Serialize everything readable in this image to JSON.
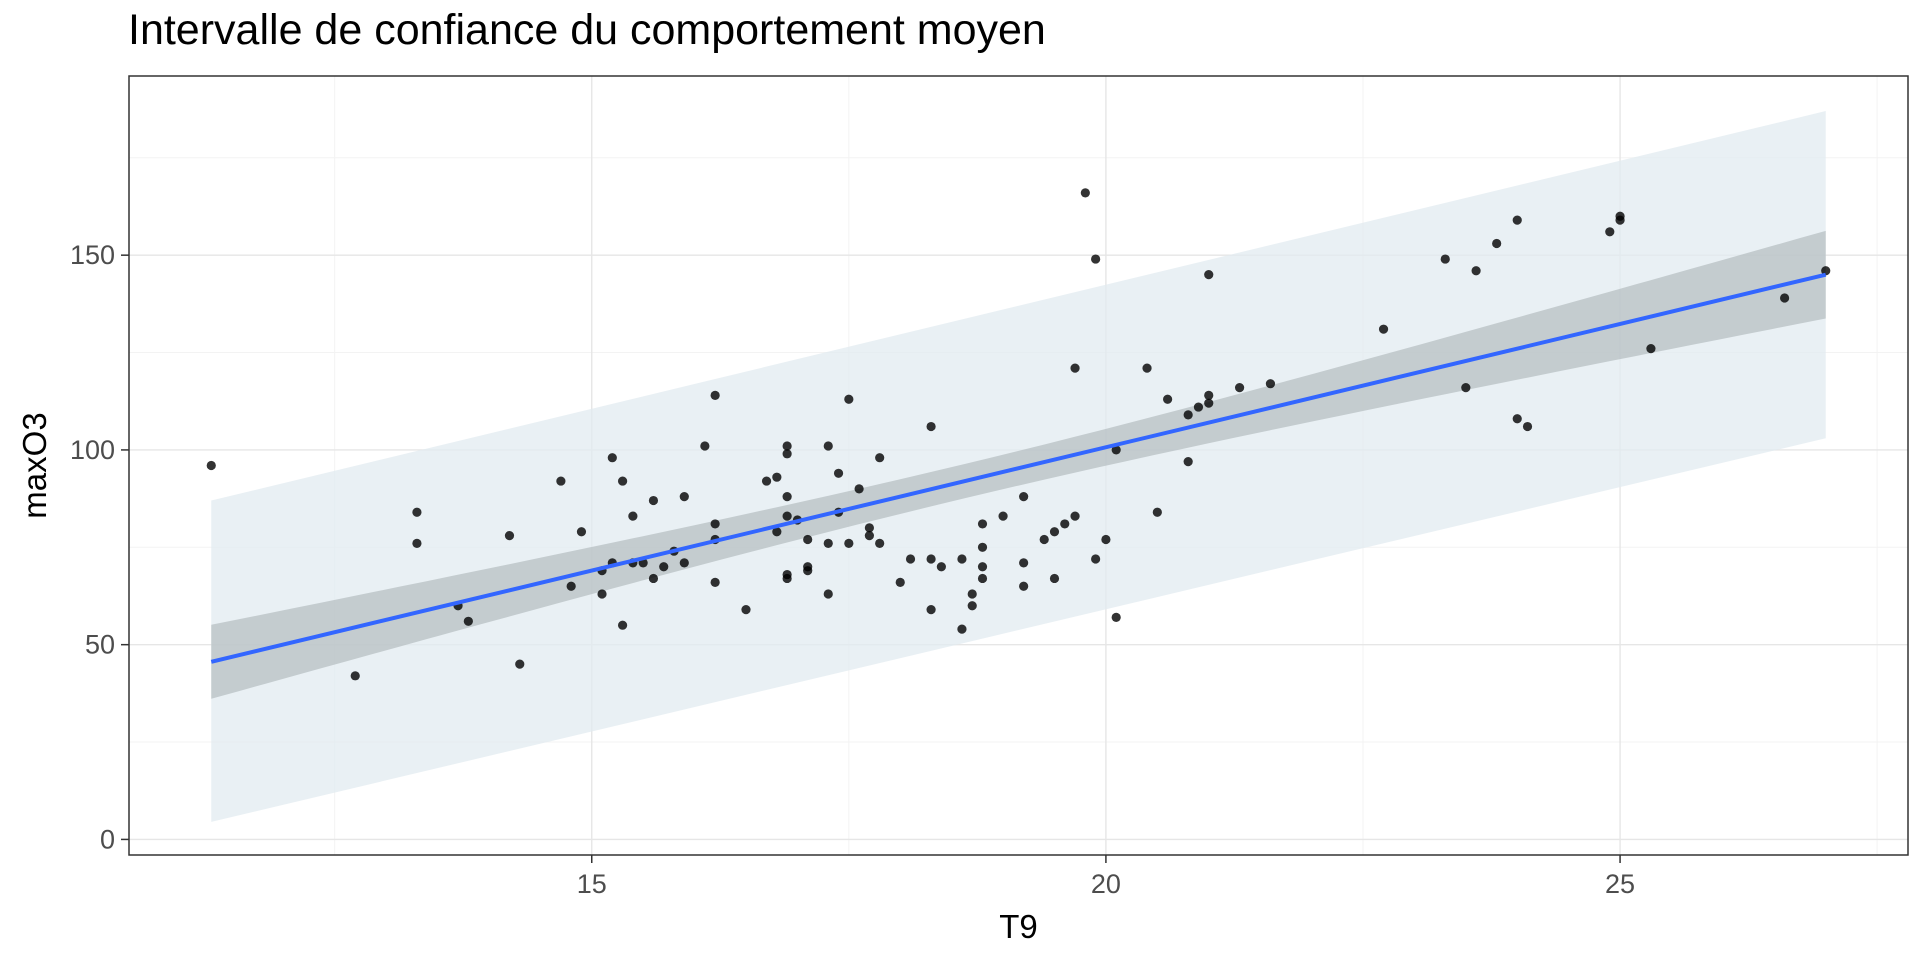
{
  "chart_data": {
    "type": "scatter",
    "title": "Intervalle de confiance du comportement moyen",
    "xlabel": "T9",
    "ylabel": "maxO3",
    "xlim": [
      10.5,
      27.8
    ],
    "ylim": [
      -4,
      196
    ],
    "x_ticks": [
      15,
      20,
      25
    ],
    "x_tick_labels": [
      "15",
      "20",
      "25"
    ],
    "y_ticks": [
      0,
      50,
      100,
      150
    ],
    "y_tick_labels": [
      "0",
      "50",
      "100",
      "150"
    ],
    "grid": true,
    "legend": "none",
    "regression": {
      "x_start": 11.3,
      "x_end": 27.0,
      "fit_start": 45.6,
      "fit_end": 145.0,
      "conf_lower_start": 36.0,
      "conf_upper_start": 55.0,
      "conf_lower_end": 133.5,
      "conf_upper_end": 156.0,
      "conf_mid_x": 18.6,
      "conf_mid_half_width": 4.4,
      "pred_lower_start": 4.5,
      "pred_upper_start": 87.0,
      "pred_lower_end": 103.0,
      "pred_upper_end": 187.0
    },
    "points": [
      [
        11.3,
        96
      ],
      [
        12.7,
        42
      ],
      [
        13.3,
        84
      ],
      [
        13.3,
        76
      ],
      [
        13.7,
        60
      ],
      [
        13.8,
        56
      ],
      [
        14.2,
        78
      ],
      [
        14.3,
        45
      ],
      [
        14.7,
        92
      ],
      [
        14.8,
        65
      ],
      [
        14.9,
        79
      ],
      [
        15.1,
        63
      ],
      [
        15.1,
        69
      ],
      [
        15.2,
        71
      ],
      [
        15.2,
        98
      ],
      [
        15.3,
        55
      ],
      [
        15.3,
        92
      ],
      [
        15.4,
        83
      ],
      [
        15.4,
        71
      ],
      [
        15.5,
        71
      ],
      [
        15.6,
        87
      ],
      [
        15.6,
        67
      ],
      [
        15.7,
        70
      ],
      [
        15.8,
        74
      ],
      [
        15.9,
        71
      ],
      [
        15.9,
        88
      ],
      [
        16.1,
        101
      ],
      [
        16.2,
        114
      ],
      [
        16.2,
        81
      ],
      [
        16.2,
        77
      ],
      [
        16.2,
        66
      ],
      [
        16.5,
        59
      ],
      [
        16.7,
        92
      ],
      [
        16.8,
        93
      ],
      [
        16.8,
        79
      ],
      [
        16.9,
        101
      ],
      [
        16.9,
        99
      ],
      [
        16.9,
        88
      ],
      [
        16.9,
        83
      ],
      [
        16.9,
        68
      ],
      [
        16.9,
        67
      ],
      [
        17.0,
        82
      ],
      [
        17.1,
        77
      ],
      [
        17.1,
        70
      ],
      [
        17.1,
        69
      ],
      [
        17.3,
        101
      ],
      [
        17.3,
        76
      ],
      [
        17.3,
        63
      ],
      [
        17.4,
        94
      ],
      [
        17.4,
        84
      ],
      [
        17.5,
        113
      ],
      [
        17.5,
        76
      ],
      [
        17.6,
        90
      ],
      [
        17.7,
        80
      ],
      [
        17.7,
        78
      ],
      [
        17.8,
        98
      ],
      [
        17.8,
        76
      ],
      [
        18.0,
        66
      ],
      [
        18.1,
        72
      ],
      [
        18.3,
        106
      ],
      [
        18.3,
        72
      ],
      [
        18.3,
        59
      ],
      [
        18.4,
        70
      ],
      [
        18.6,
        72
      ],
      [
        18.6,
        54
      ],
      [
        18.7,
        63
      ],
      [
        18.7,
        60
      ],
      [
        18.8,
        81
      ],
      [
        18.8,
        75
      ],
      [
        18.8,
        70
      ],
      [
        18.8,
        67
      ],
      [
        19.0,
        83
      ],
      [
        19.2,
        88
      ],
      [
        19.2,
        71
      ],
      [
        19.2,
        65
      ],
      [
        19.4,
        77
      ],
      [
        19.5,
        79
      ],
      [
        19.5,
        67
      ],
      [
        19.6,
        81
      ],
      [
        19.7,
        121
      ],
      [
        19.7,
        83
      ],
      [
        19.8,
        166
      ],
      [
        19.9,
        149
      ],
      [
        19.9,
        72
      ],
      [
        20.0,
        77
      ],
      [
        20.1,
        100
      ],
      [
        20.1,
        57
      ],
      [
        20.4,
        121
      ],
      [
        20.5,
        84
      ],
      [
        20.6,
        113
      ],
      [
        20.8,
        109
      ],
      [
        20.8,
        97
      ],
      [
        20.9,
        111
      ],
      [
        21.0,
        145
      ],
      [
        21.0,
        114
      ],
      [
        21.0,
        112
      ],
      [
        21.3,
        116
      ],
      [
        21.6,
        117
      ],
      [
        22.7,
        131
      ],
      [
        23.3,
        149
      ],
      [
        23.5,
        116
      ],
      [
        23.6,
        146
      ],
      [
        23.8,
        153
      ],
      [
        24.0,
        159
      ],
      [
        24.0,
        108
      ],
      [
        24.1,
        106
      ],
      [
        24.9,
        156
      ],
      [
        25.0,
        160
      ],
      [
        25.0,
        159
      ],
      [
        25.3,
        126
      ],
      [
        26.6,
        139
      ],
      [
        27.0,
        146
      ]
    ],
    "colors": {
      "line": "#3366ff",
      "confidence_band": "#b4bcbf",
      "prediction_band": "#e2ebf0",
      "points": "#000000",
      "grid_major": "#e6e6e6",
      "grid_minor": "#f3f3f3",
      "panel_border": "#333333"
    }
  }
}
